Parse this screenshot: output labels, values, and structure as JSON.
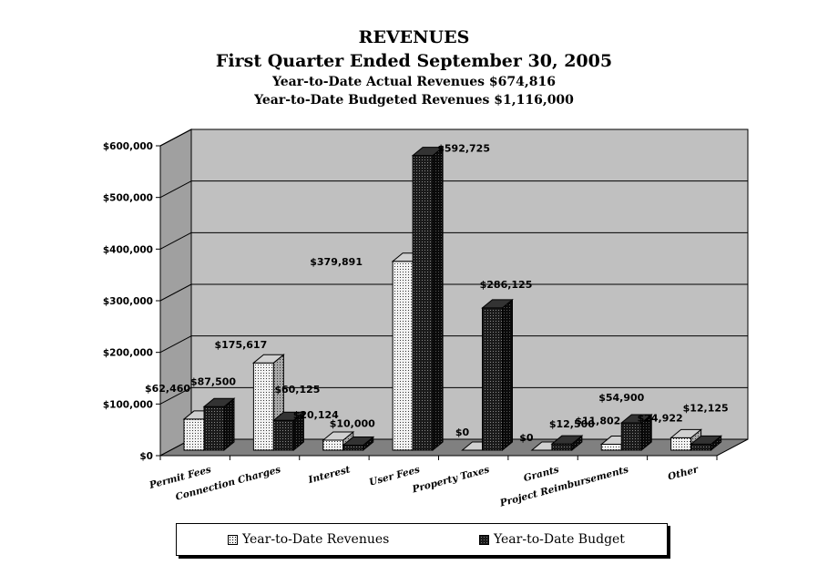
{
  "header": {
    "title": "REVENUES",
    "subtitle": "First Quarter Ended September 30, 2005",
    "actual_line": "Year-to-Date Actual Revenues $674,816",
    "budget_line": "Year-to-Date Budgeted Revenues $1,116,000"
  },
  "chart_data": {
    "type": "bar",
    "title": "REVENUES",
    "categories": [
      "Permit Fees",
      "Connection Charges",
      "Interest",
      "User Fees",
      "Property Taxes",
      "Grants",
      "Project Reimbursements",
      "Other"
    ],
    "series": [
      {
        "name": "Year-to-Date Revenues",
        "values": [
          62460,
          175617,
          20124,
          379891,
          0,
          0,
          11802,
          24922
        ],
        "labels": [
          "$62,460",
          "$175,617",
          "$20,124",
          "$379,891",
          "$0",
          "$0",
          "$11,802",
          "$24,922"
        ]
      },
      {
        "name": "Year-to-Date Budget",
        "values": [
          87500,
          60125,
          10000,
          592725,
          286125,
          12500,
          54900,
          12125
        ],
        "labels": [
          "$87,500",
          "$60,125",
          "$10,000",
          "$592,725",
          "$286,125",
          "$12,500",
          "$54,900",
          "$12,125"
        ]
      }
    ],
    "ylim": [
      0,
      600000
    ],
    "yticks": [
      "$0",
      "$100,000",
      "$200,000",
      "$300,000",
      "$400,000",
      "$500,000",
      "$600,000"
    ],
    "grid": true,
    "legend_position": "bottom",
    "colors": {
      "revenues": "#f2f2f2",
      "budget": "#1a1a1a",
      "wall": "#c0c0c0",
      "floor": "#808080"
    }
  }
}
